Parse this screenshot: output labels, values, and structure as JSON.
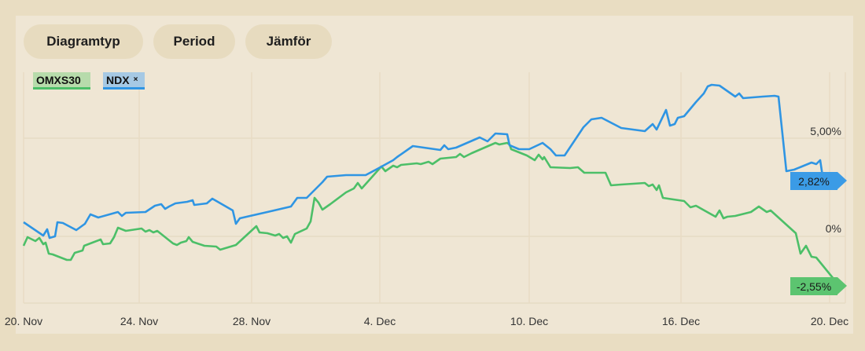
{
  "toolbar": {
    "chart_type": "Diagramtyp",
    "period": "Period",
    "compare": "Jämför"
  },
  "legend": [
    {
      "name": "OMXS30",
      "color": "#4cbf68"
    },
    {
      "name": "NDX",
      "color": "#2f95e3",
      "remove_icon": "×"
    }
  ],
  "chart_data": {
    "type": "line",
    "title": "",
    "xlabel": "",
    "ylabel": "",
    "x_unit": "session index",
    "xlim": [
      0,
      104.5
    ],
    "ylim": [
      -3.4,
      8.36
    ],
    "grid": true,
    "x_ticks": [
      {
        "x": 0,
        "label": "20. Nov"
      },
      {
        "x": 14.7,
        "label": "24. Nov"
      },
      {
        "x": 29,
        "label": "28. Nov"
      },
      {
        "x": 45.3,
        "label": "4. Dec"
      },
      {
        "x": 64.3,
        "label": "10. Dec"
      },
      {
        "x": 83.6,
        "label": "16. Dec"
      },
      {
        "x": 102.5,
        "label": "20. Dec"
      }
    ],
    "y_ticks": [
      {
        "y": 5,
        "label": "5,00%"
      },
      {
        "y": 0,
        "label": "0%"
      }
    ],
    "series": [
      {
        "name": "NDX",
        "color": "#2f95e3",
        "last_label": "2,82%",
        "last": 2.82,
        "points": [
          [
            0,
            0.72
          ],
          [
            2.5,
            0.04
          ],
          [
            3,
            0.36
          ],
          [
            3.3,
            -0.08
          ],
          [
            4,
            0
          ],
          [
            4.3,
            0.72
          ],
          [
            5,
            0.68
          ],
          [
            6.7,
            0.32
          ],
          [
            7.8,
            0.64
          ],
          [
            8.5,
            1.12
          ],
          [
            9.5,
            0.96
          ],
          [
            12,
            1.24
          ],
          [
            12.5,
            1.04
          ],
          [
            13,
            1.2
          ],
          [
            15.5,
            1.24
          ],
          [
            16.7,
            1.56
          ],
          [
            17.5,
            1.64
          ],
          [
            18,
            1.4
          ],
          [
            18.5,
            1.52
          ],
          [
            19.3,
            1.68
          ],
          [
            20.8,
            1.76
          ],
          [
            21.5,
            1.84
          ],
          [
            21.7,
            1.6
          ],
          [
            23.3,
            1.68
          ],
          [
            24,
            1.92
          ],
          [
            26.6,
            1.32
          ],
          [
            27,
            0.64
          ],
          [
            27.5,
            0.92
          ],
          [
            28.8,
            1.04
          ],
          [
            31,
            1.24
          ],
          [
            34,
            1.52
          ],
          [
            34.8,
            1.96
          ],
          [
            36,
            1.96
          ],
          [
            38,
            2.76
          ],
          [
            38.6,
            3.04
          ],
          [
            41,
            3.12
          ],
          [
            43.5,
            3.12
          ],
          [
            45,
            3.44
          ],
          [
            47,
            3.88
          ],
          [
            47.5,
            4.04
          ],
          [
            49.5,
            4.6
          ],
          [
            53,
            4.4
          ],
          [
            53.5,
            4.64
          ],
          [
            54,
            4.44
          ],
          [
            55,
            4.52
          ],
          [
            58,
            5.04
          ],
          [
            59,
            4.84
          ],
          [
            60,
            5.24
          ],
          [
            61.5,
            5.2
          ],
          [
            61.8,
            4.64
          ],
          [
            63,
            4.44
          ],
          [
            64.3,
            4.44
          ],
          [
            66,
            4.76
          ],
          [
            67,
            4.44
          ],
          [
            67.7,
            4.12
          ],
          [
            68.8,
            4.12
          ],
          [
            71.2,
            5.56
          ],
          [
            72.2,
            5.96
          ],
          [
            73.5,
            6.04
          ],
          [
            76,
            5.52
          ],
          [
            79,
            5.36
          ],
          [
            80,
            5.72
          ],
          [
            80.5,
            5.44
          ],
          [
            81.7,
            6.44
          ],
          [
            82.2,
            5.64
          ],
          [
            82.8,
            5.72
          ],
          [
            83.2,
            6.04
          ],
          [
            84,
            6.12
          ],
          [
            85.5,
            6.84
          ],
          [
            86.5,
            7.28
          ],
          [
            87,
            7.64
          ],
          [
            87.5,
            7.72
          ],
          [
            88.5,
            7.68
          ],
          [
            90.5,
            7.12
          ],
          [
            91,
            7.28
          ],
          [
            91.5,
            7.04
          ],
          [
            94,
            7.12
          ],
          [
            95.5,
            7.16
          ],
          [
            96,
            7.12
          ],
          [
            97,
            3.32
          ],
          [
            98,
            3.4
          ],
          [
            100.2,
            3.76
          ],
          [
            100.8,
            3.68
          ],
          [
            101.3,
            3.88
          ],
          [
            101.7,
            2.82
          ]
        ]
      },
      {
        "name": "OMXS30",
        "color": "#4cbf68",
        "last_label": "-2,55%",
        "last": -2.55,
        "points": [
          [
            0,
            -0.48
          ],
          [
            0.5,
            -0.04
          ],
          [
            1.5,
            -0.24
          ],
          [
            2,
            -0.08
          ],
          [
            2.5,
            -0.4
          ],
          [
            2.8,
            -0.32
          ],
          [
            3.2,
            -0.88
          ],
          [
            3.7,
            -0.92
          ],
          [
            5.5,
            -1.2
          ],
          [
            6,
            -1.2
          ],
          [
            6.5,
            -0.84
          ],
          [
            7.5,
            -0.72
          ],
          [
            7.7,
            -0.48
          ],
          [
            9.8,
            -0.16
          ],
          [
            10.1,
            -0.4
          ],
          [
            11,
            -0.36
          ],
          [
            11.5,
            -0.04
          ],
          [
            12,
            0.44
          ],
          [
            13,
            0.28
          ],
          [
            15,
            0.4
          ],
          [
            15.5,
            0.24
          ],
          [
            16,
            0.32
          ],
          [
            16.5,
            0.2
          ],
          [
            17,
            0.28
          ],
          [
            19,
            -0.36
          ],
          [
            19.5,
            -0.44
          ],
          [
            20,
            -0.32
          ],
          [
            20.7,
            -0.24
          ],
          [
            21,
            -0.04
          ],
          [
            21.5,
            -0.28
          ],
          [
            23,
            -0.48
          ],
          [
            24.5,
            -0.52
          ],
          [
            25,
            -0.68
          ],
          [
            26,
            -0.56
          ],
          [
            27,
            -0.44
          ],
          [
            29.6,
            0.52
          ],
          [
            30,
            0.2
          ],
          [
            31,
            0.16
          ],
          [
            32,
            0.04
          ],
          [
            32.5,
            0.12
          ],
          [
            33,
            -0.08
          ],
          [
            33.5,
            0
          ],
          [
            34,
            -0.32
          ],
          [
            34.5,
            0.12
          ],
          [
            36,
            0.4
          ],
          [
            36.5,
            0.76
          ],
          [
            37,
            1.96
          ],
          [
            37.5,
            1.72
          ],
          [
            38,
            1.36
          ],
          [
            39,
            1.64
          ],
          [
            41,
            2.24
          ],
          [
            42,
            2.44
          ],
          [
            42.5,
            2.72
          ],
          [
            43,
            2.44
          ],
          [
            45.5,
            3.56
          ],
          [
            46,
            3.32
          ],
          [
            47,
            3.6
          ],
          [
            47.5,
            3.52
          ],
          [
            48,
            3.64
          ],
          [
            50,
            3.72
          ],
          [
            50.5,
            3.68
          ],
          [
            51.5,
            3.8
          ],
          [
            52,
            3.68
          ],
          [
            53,
            3.96
          ],
          [
            55,
            4.04
          ],
          [
            55.5,
            4.2
          ],
          [
            56,
            4.04
          ],
          [
            57,
            4.24
          ],
          [
            60,
            4.76
          ],
          [
            60.5,
            4.68
          ],
          [
            61.5,
            4.76
          ],
          [
            61.8,
            4.68
          ],
          [
            62,
            4.44
          ],
          [
            64,
            4.12
          ],
          [
            65,
            3.88
          ],
          [
            65.5,
            4.16
          ],
          [
            66,
            3.92
          ],
          [
            66.2,
            4.04
          ],
          [
            67,
            3.52
          ],
          [
            69.5,
            3.48
          ],
          [
            70.5,
            3.52
          ],
          [
            71.3,
            3.24
          ],
          [
            74,
            3.24
          ],
          [
            74.7,
            2.6
          ],
          [
            76,
            2.64
          ],
          [
            79,
            2.72
          ],
          [
            79.5,
            2.56
          ],
          [
            80,
            2.64
          ],
          [
            80.5,
            2.36
          ],
          [
            80.8,
            2.6
          ],
          [
            81.3,
            1.96
          ],
          [
            84,
            1.8
          ],
          [
            84.8,
            1.48
          ],
          [
            85.5,
            1.56
          ],
          [
            88,
            1
          ],
          [
            88.5,
            1.32
          ],
          [
            89,
            0.92
          ],
          [
            89.5,
            1
          ],
          [
            90.5,
            1.04
          ],
          [
            92.5,
            1.24
          ],
          [
            93.5,
            1.52
          ],
          [
            94.5,
            1.24
          ],
          [
            95,
            1.32
          ],
          [
            98.2,
            0.16
          ],
          [
            98.8,
            -0.88
          ],
          [
            99.5,
            -0.48
          ],
          [
            100.2,
            -1.04
          ],
          [
            100.8,
            -1.08
          ],
          [
            103.8,
            -2.55
          ]
        ]
      }
    ]
  }
}
